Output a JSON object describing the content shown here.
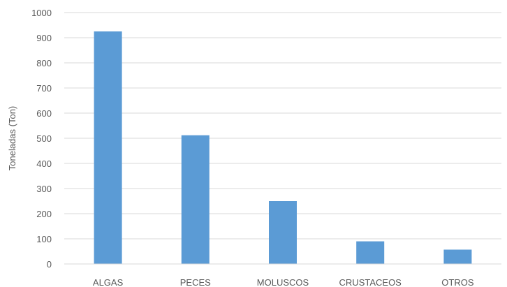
{
  "chart_data": {
    "type": "bar",
    "title": "",
    "xlabel": "",
    "ylabel": "Toneladas (Ton)",
    "categories": [
      "ALGAS",
      "PECES",
      "MOLUSCOS",
      "CRUSTACEOS",
      "OTROS"
    ],
    "values": [
      925,
      512,
      250,
      90,
      57
    ],
    "ylim": [
      0,
      1000
    ],
    "yticks": [
      0,
      100,
      200,
      300,
      400,
      500,
      600,
      700,
      800,
      900,
      1000
    ],
    "grid": true,
    "legend": "none",
    "bar_color": "#5B9BD5",
    "grid_color": "#D9D9D9"
  }
}
